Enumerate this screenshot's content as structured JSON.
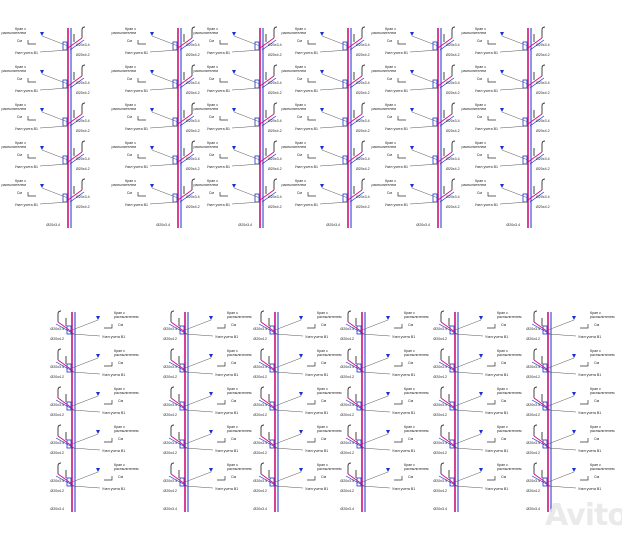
{
  "labels": {
    "faucet": "Кран с",
    "faucet2": "распылителем",
    "wc": "См",
    "meter": "Узел учета В1",
    "pipe_a": "Ø20х3.4",
    "pipe_b": "Ø20х4.2",
    "riser": "Ст В1"
  },
  "rows": [
    {
      "orientation": "right",
      "risers": 6,
      "floors": 5
    },
    {
      "orientation": "left",
      "risers": 6,
      "floors": 5
    }
  ],
  "colors": {
    "hot": "#d0107a",
    "cold": "#1a2fd0",
    "line": "#333333"
  },
  "watermark": "Avito"
}
